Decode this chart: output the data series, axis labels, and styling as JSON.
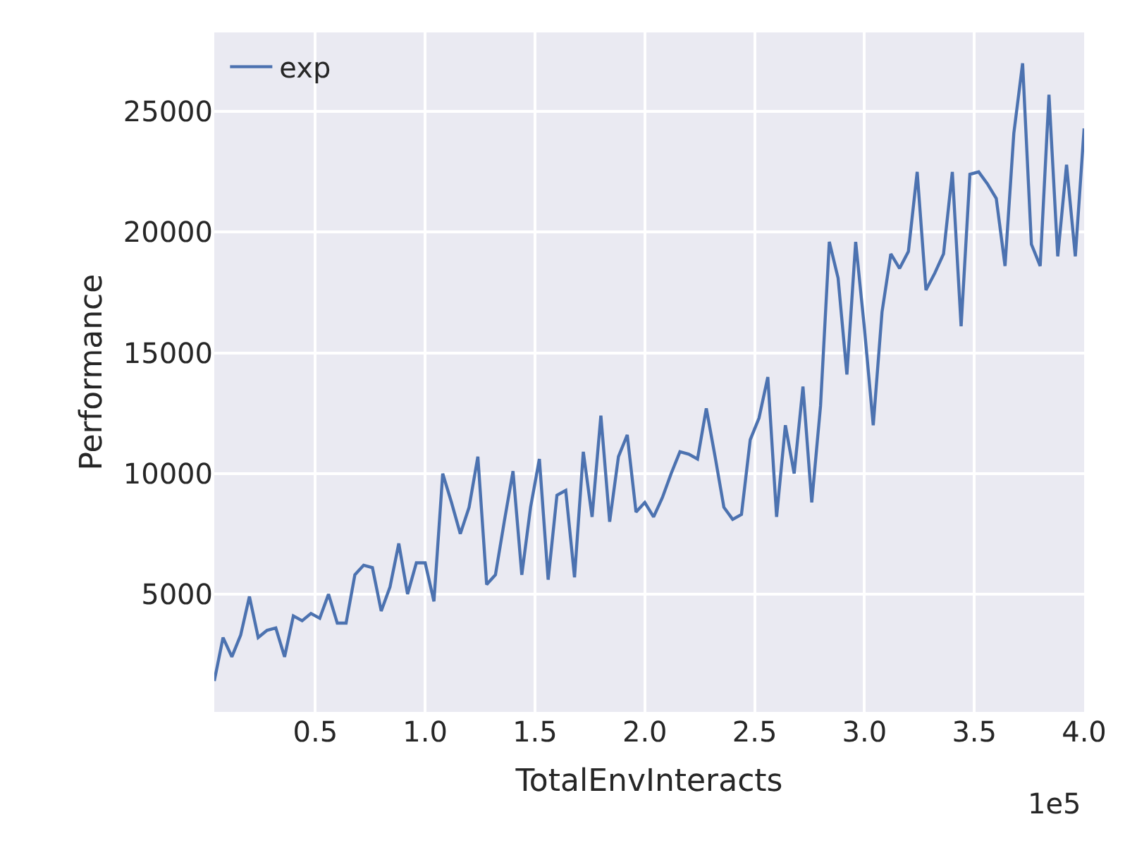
{
  "chart_data": {
    "type": "line",
    "xlabel": "TotalEnvInteracts",
    "ylabel": "Performance",
    "x": [
      0.04,
      0.08,
      0.12,
      0.16,
      0.2,
      0.24,
      0.28,
      0.32,
      0.36,
      0.4,
      0.44,
      0.48,
      0.52,
      0.56,
      0.6,
      0.64,
      0.68,
      0.72,
      0.76,
      0.8,
      0.84,
      0.88,
      0.92,
      0.96,
      1.0,
      1.04,
      1.08,
      1.12,
      1.16,
      1.2,
      1.24,
      1.28,
      1.32,
      1.36,
      1.4,
      1.44,
      1.48,
      1.52,
      1.56,
      1.6,
      1.64,
      1.68,
      1.72,
      1.76,
      1.8,
      1.84,
      1.88,
      1.92,
      1.96,
      2.0,
      2.04,
      2.08,
      2.12,
      2.16,
      2.2,
      2.24,
      2.28,
      2.32,
      2.36,
      2.4,
      2.44,
      2.48,
      2.52,
      2.56,
      2.6,
      2.64,
      2.68,
      2.72,
      2.76,
      2.8,
      2.84,
      2.88,
      2.92,
      2.96,
      3.0,
      3.04,
      3.08,
      3.12,
      3.16,
      3.2,
      3.24,
      3.28,
      3.32,
      3.36,
      3.4,
      3.44,
      3.48,
      3.52,
      3.56,
      3.6,
      3.64,
      3.68,
      3.72,
      3.76,
      3.8,
      3.84,
      3.88,
      3.92,
      3.96,
      4.0
    ],
    "series": [
      {
        "name": "exp",
        "color": "#4c72b0",
        "values": [
          1400,
          3200,
          2400,
          3300,
          4900,
          3200,
          3500,
          3600,
          2400,
          4100,
          3900,
          4200,
          4000,
          5000,
          3800,
          3800,
          5800,
          6200,
          6100,
          4300,
          5300,
          7100,
          5000,
          6300,
          6300,
          4700,
          10000,
          8800,
          7500,
          8600,
          10700,
          5400,
          5800,
          8000,
          10100,
          5800,
          8600,
          10600,
          5600,
          9100,
          9300,
          5700,
          10900,
          8200,
          12400,
          8000,
          10700,
          11600,
          8400,
          8800,
          8200,
          9000,
          10000,
          10900,
          10800,
          10600,
          12700,
          10700,
          8600,
          8100,
          8300,
          11400,
          12300,
          14000,
          8200,
          12000,
          10000,
          13600,
          8800,
          12800,
          19600,
          18100,
          14100,
          19600,
          16000,
          12000,
          16700,
          19100,
          18500,
          19200,
          22500,
          17600,
          18300,
          19100,
          22500,
          16100,
          22400,
          22500,
          22000,
          21400,
          18600,
          24100,
          27000,
          19500,
          18600,
          25700,
          19000,
          22800,
          19000,
          24300
        ]
      }
    ],
    "xlim": [
      0.04,
      4.0
    ],
    "xticks": [
      0.5,
      {
        "value": 1,
        "label": "1.0"
      },
      1.5,
      {
        "value": 2,
        "label": "2.0"
      },
      2.5,
      {
        "value": 3,
        "label": "3.0"
      },
      3.5,
      {
        "value": 4,
        "label": "4.0"
      }
    ],
    "ylim": [
      120,
      28280
    ],
    "yticks": [
      5000,
      10000,
      15000,
      20000,
      25000
    ],
    "annotations": [
      "1e5"
    ],
    "grid": true,
    "legend": "top left",
    "marker": "none",
    "line_style": "solid"
  }
}
